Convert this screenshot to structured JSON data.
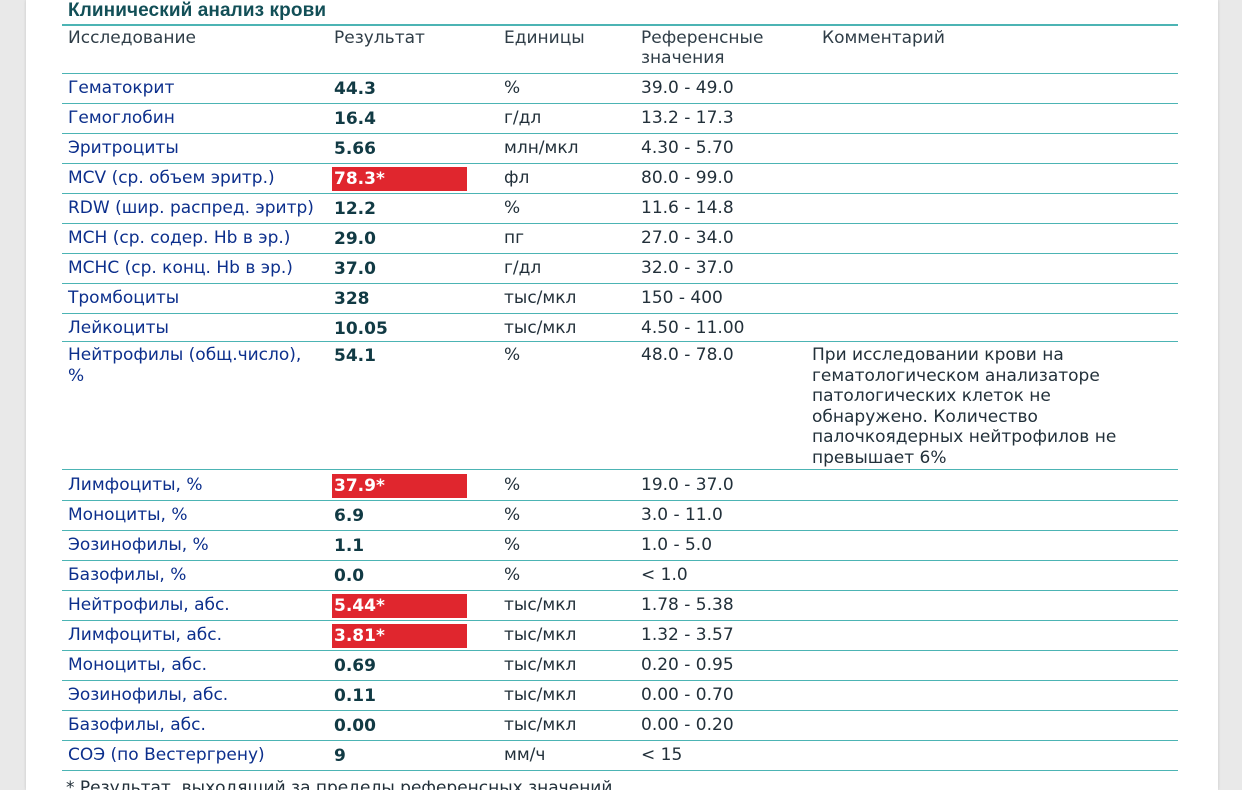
{
  "title": "Клинический анализ крови",
  "headers": {
    "test": "Исследование",
    "result": "Результат",
    "units": "Единицы",
    "reference_line1": "Референсные",
    "reference_line2": "значения",
    "comment": "Комментарий"
  },
  "rows": [
    {
      "name": "Гематокрит",
      "result": "44.3",
      "units": "%",
      "reference": "39.0 - 49.0",
      "flagged": false
    },
    {
      "name": "Гемоглобин",
      "result": "16.4",
      "units": "г/дл",
      "reference": "13.2 - 17.3",
      "flagged": false
    },
    {
      "name": "Эритроциты",
      "result": "5.66",
      "units": "млн/мкл",
      "reference": "4.30 - 5.70",
      "flagged": false
    },
    {
      "name": "MCV (ср. объем эритр.)",
      "result": "78.3*",
      "units": "фл",
      "reference": "80.0 - 99.0",
      "flagged": true
    },
    {
      "name": "RDW (шир. распред. эритр)",
      "result": "12.2",
      "units": "%",
      "reference": "11.6 - 14.8",
      "flagged": false
    },
    {
      "name": "MCH (ср. содер. Hb в эр.)",
      "result": "29.0",
      "units": "пг",
      "reference": "27.0 - 34.0",
      "flagged": false
    },
    {
      "name": "MCHC (ср. конц. Hb в эр.)",
      "result": "37.0",
      "units": "г/дл",
      "reference": "32.0 - 37.0",
      "flagged": false
    },
    {
      "name": "Тромбоциты",
      "result": "328",
      "units": "тыс/мкл",
      "reference": "150 - 400",
      "flagged": false
    },
    {
      "name": "Лейкоциты",
      "result": "10.05",
      "units": "тыс/мкл",
      "reference": "4.50 - 11.00",
      "flagged": false
    },
    {
      "name_line1": "Нейтрофилы (общ.число),",
      "name_line2": "%",
      "result": "54.1",
      "units": "%",
      "reference": "48.0 - 78.0",
      "flagged": false,
      "comment": [
        "При исследовании крови на",
        "гематологическом анализаторе",
        "патологических клеток не",
        "обнаружено. Количество",
        "палочкоядерных нейтрофилов не",
        "превышает 6%"
      ]
    },
    {
      "name": "Лимфоциты, %",
      "result": "37.9*",
      "units": "%",
      "reference": "19.0 - 37.0",
      "flagged": true
    },
    {
      "name": "Моноциты, %",
      "result": "6.9",
      "units": "%",
      "reference": "3.0 - 11.0",
      "flagged": false
    },
    {
      "name": "Эозинофилы, %",
      "result": "1.1",
      "units": "%",
      "reference": "1.0 - 5.0",
      "flagged": false
    },
    {
      "name": "Базофилы, %",
      "result": "0.0",
      "units": "%",
      "reference": "< 1.0",
      "flagged": false
    },
    {
      "name": "Нейтрофилы, абс.",
      "result": "5.44*",
      "units": "тыс/мкл",
      "reference": "1.78 - 5.38",
      "flagged": true
    },
    {
      "name": "Лимфоциты, абс.",
      "result": "3.81*",
      "units": "тыс/мкл",
      "reference": "1.32 - 3.57",
      "flagged": true
    },
    {
      "name": "Моноциты, абс.",
      "result": "0.69",
      "units": "тыс/мкл",
      "reference": "0.20 - 0.95",
      "flagged": false
    },
    {
      "name": "Эозинофилы, абс.",
      "result": "0.11",
      "units": "тыс/мкл",
      "reference": "0.00 - 0.70",
      "flagged": false
    },
    {
      "name": "Базофилы, абс.",
      "result": "0.00",
      "units": "тыс/мкл",
      "reference": "0.00 - 0.20",
      "flagged": false
    },
    {
      "name": "СОЭ (по Вестергрену)",
      "result": "9",
      "units": "мм/ч",
      "reference": "< 15",
      "flagged": false
    }
  ],
  "footnote": "* Результат, выходящий за пределы референсных значений",
  "colors": {
    "flag": "#e0262e",
    "rule": "#4cb4b4",
    "title": "#124f57",
    "name": "#0c2f8c"
  }
}
